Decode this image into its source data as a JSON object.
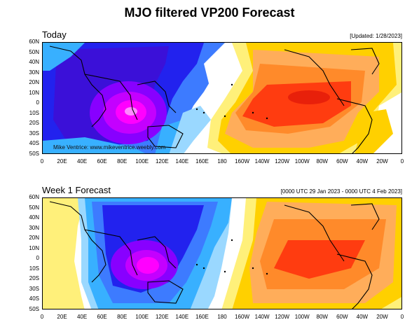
{
  "title": "MJO filtered VP200 Forecast",
  "panels": [
    {
      "title": "Today",
      "meta": "[Updated: 1/28/2023]",
      "watermark": "Mike Ventrice: www.mikeventrice.weebly.com"
    },
    {
      "title": "Week 1 Forecast",
      "meta": "[0000 UTC 29 Jan 2023 - 0000 UTC 4 Feb 2023]",
      "watermark": ""
    }
  ],
  "lat_labels": [
    "60N",
    "50N",
    "40N",
    "30N",
    "20N",
    "10N",
    "0",
    "10S",
    "20S",
    "30S",
    "40S",
    "50S"
  ],
  "lon_labels": [
    "0",
    "20E",
    "40E",
    "60E",
    "80E",
    "100E",
    "120E",
    "140E",
    "160E",
    "180",
    "160W",
    "140W",
    "120W",
    "100W",
    "80W",
    "60W",
    "40W",
    "20W",
    "0"
  ],
  "colors": {
    "neg_strong": "#ff00ff",
    "neg_mid": "#8800ff",
    "neg": "#2222ee",
    "neg_light": "#3d7bff",
    "neg_lighter": "#38b0ff",
    "neg_lightest": "#9ad8ff",
    "pos_lightest": "#fff07a",
    "pos_light": "#ffd000",
    "pos": "#ffad5a",
    "pos_mid": "#ff8a2a",
    "pos_strong": "#ff3c10"
  }
}
